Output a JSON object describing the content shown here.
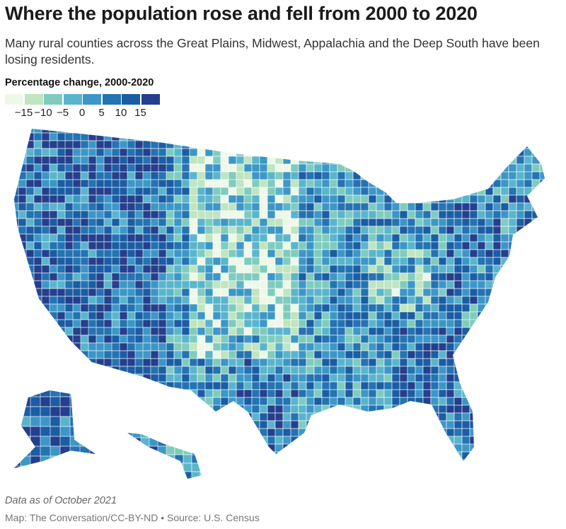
{
  "title": "Where the population rose and fell from 2000 to 2020",
  "subtitle": "Many rural counties across the Great Plains, Midwest, Appalachia and the Deep South have been losing residents.",
  "legend": {
    "title": "Percentage change, 2000-2020",
    "colors": [
      "#edf8e8",
      "#bfe5c1",
      "#7fccbe",
      "#5ab5cc",
      "#3c97c7",
      "#2473b2",
      "#1b5da4",
      "#243f8d"
    ],
    "ticks": [
      "−15",
      "−10",
      "−5",
      "0",
      "5",
      "10",
      "15"
    ]
  },
  "map": {
    "region": "United States counties",
    "color_scale": "sequential green-blue",
    "background": "#ffffff",
    "border_color": "#ffffff"
  },
  "footer": {
    "note": "Data as of October 2021",
    "source": "Map: The Conversation/CC-BY-ND • Source: U.S. Census"
  }
}
